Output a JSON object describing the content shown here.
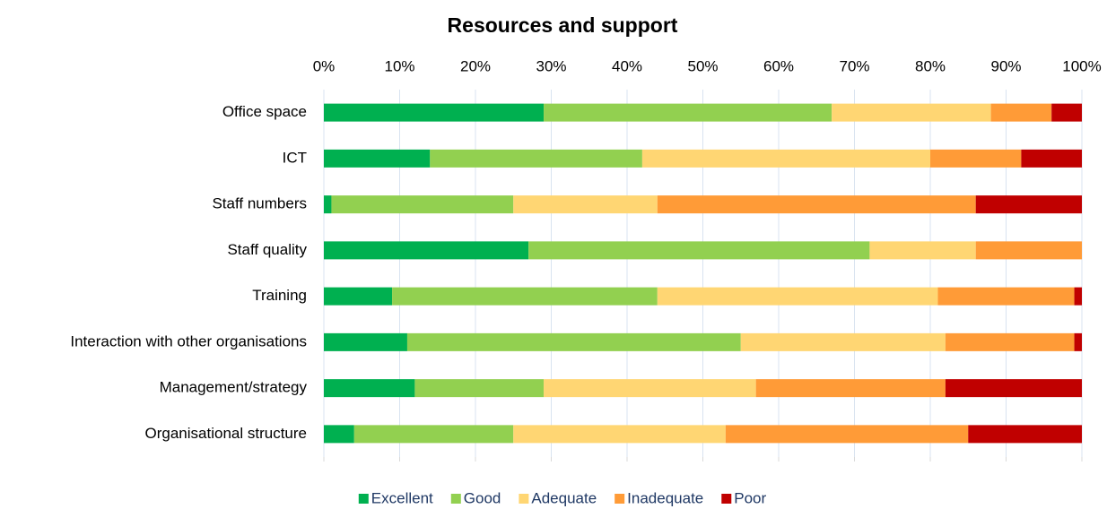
{
  "chart_data": {
    "type": "stacked_barh",
    "title": "Resources and support",
    "categories": [
      "Office space",
      "ICT",
      "Staff numbers",
      "Staff quality",
      "Training",
      "Interaction with other organisations",
      "Management/strategy",
      "Organisational structure"
    ],
    "series": [
      {
        "name": "Excellent",
        "color": "#00b050",
        "values": [
          29,
          14,
          1,
          27,
          9,
          11,
          12,
          4
        ]
      },
      {
        "name": "Good",
        "color": "#92d050",
        "values": [
          38,
          28,
          24,
          45,
          35,
          44,
          17,
          21
        ]
      },
      {
        "name": "Adequate",
        "color": "#ffd673",
        "values": [
          21,
          38,
          19,
          14,
          37,
          27,
          28,
          28
        ]
      },
      {
        "name": "Inadequate",
        "color": "#ff9b37",
        "values": [
          8,
          12,
          42,
          14,
          18,
          17,
          25,
          32
        ]
      },
      {
        "name": "Poor",
        "color": "#c00000",
        "values": [
          4,
          8,
          14,
          0,
          1,
          1,
          18,
          15
        ]
      }
    ],
    "xlim": [
      0,
      100
    ],
    "xticks": [
      {
        "value": 0,
        "label": "0%"
      },
      {
        "value": 10,
        "label": "10%"
      },
      {
        "value": 20,
        "label": "20%"
      },
      {
        "value": 30,
        "label": "30%"
      },
      {
        "value": 40,
        "label": "40%"
      },
      {
        "value": 50,
        "label": "50%"
      },
      {
        "value": 60,
        "label": "60%"
      },
      {
        "value": 70,
        "label": "70%"
      },
      {
        "value": 80,
        "label": "80%"
      },
      {
        "value": 90,
        "label": "90%"
      },
      {
        "value": 100,
        "label": "100%"
      }
    ],
    "grid": true,
    "legend": "bottom"
  }
}
